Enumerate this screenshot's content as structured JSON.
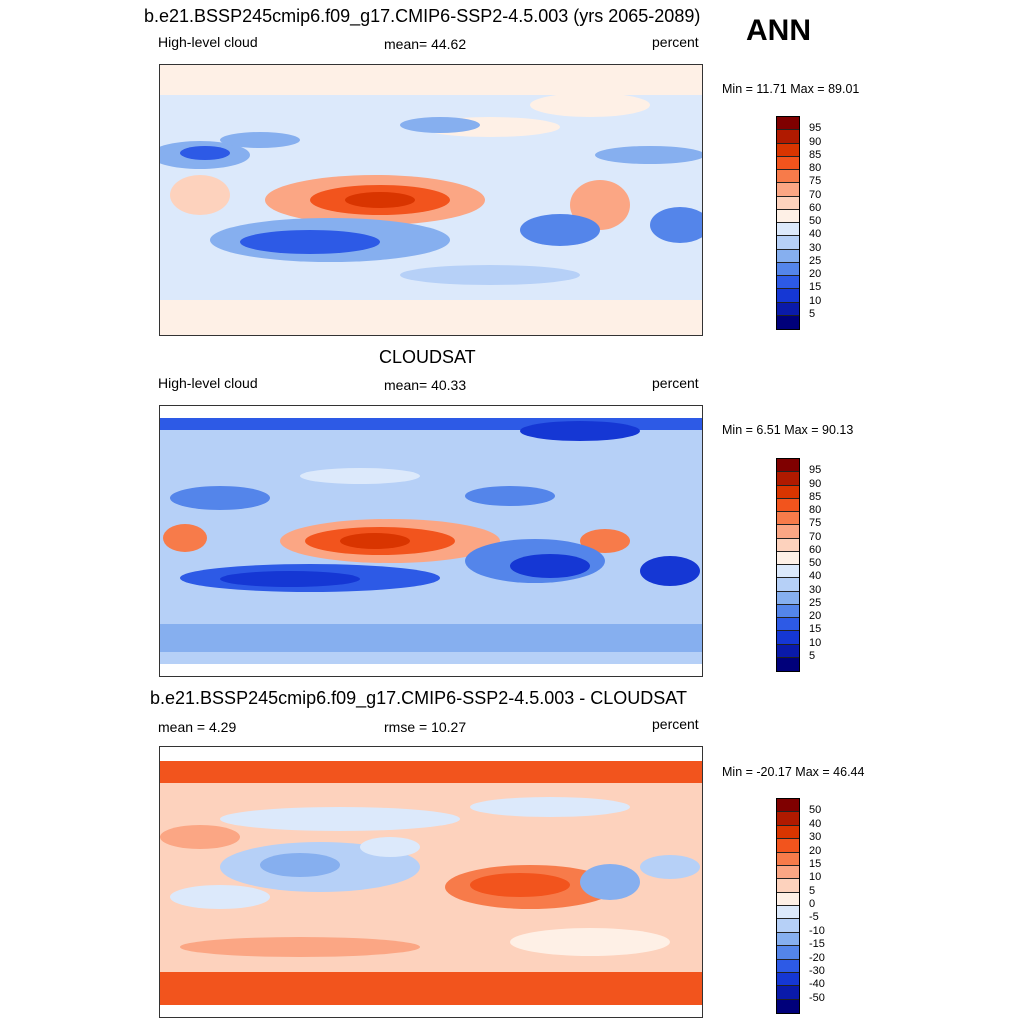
{
  "season": "ANN",
  "panels": [
    {
      "title": "b.e21.BSSP245cmip6.f09_g17.CMIP6-SSP2-4.5.003 (yrs 2065-2089)",
      "left_label": "High-level cloud",
      "center_label": "mean=  44.62",
      "right_label": "percent",
      "minmax": "Min =  11.71 Max =  89.01",
      "colorbar_levels": [
        "95",
        "90",
        "85",
        "80",
        "75",
        "70",
        "60",
        "50",
        "40",
        "30",
        "25",
        "20",
        "15",
        "10",
        "5"
      ],
      "colors": [
        "#7f0000",
        "#b01a00",
        "#d93500",
        "#f2541d",
        "#f77b4a",
        "#fba684",
        "#fdd2bd",
        "#fef0e6",
        "#dce9fb",
        "#b6d0f7",
        "#86afef",
        "#5485ea",
        "#2d5ae6",
        "#1537d4",
        "#0a1aaa",
        "#00007a"
      ]
    },
    {
      "title": "CLOUDSAT",
      "left_label": "High-level cloud",
      "center_label": "mean=  40.33",
      "right_label": "percent",
      "minmax": "Min =   6.51 Max =  90.13",
      "colorbar_levels": [
        "95",
        "90",
        "85",
        "80",
        "75",
        "70",
        "60",
        "50",
        "40",
        "30",
        "25",
        "20",
        "15",
        "10",
        "5"
      ],
      "colors": [
        "#7f0000",
        "#b01a00",
        "#d93500",
        "#f2541d",
        "#f77b4a",
        "#fba684",
        "#fdd2bd",
        "#fef0e6",
        "#dce9fb",
        "#b6d0f7",
        "#86afef",
        "#5485ea",
        "#2d5ae6",
        "#1537d4",
        "#0a1aaa",
        "#00007a"
      ]
    },
    {
      "title": "b.e21.BSSP245cmip6.f09_g17.CMIP6-SSP2-4.5.003 - CLOUDSAT",
      "left_label": "mean =   4.29",
      "center_label": "rmse =  10.27",
      "right_label": "percent",
      "minmax": "Min = -20.17 Max =  46.44",
      "colorbar_levels": [
        "50",
        "40",
        "30",
        "20",
        "15",
        "10",
        "5",
        "0",
        "-5",
        "-10",
        "-15",
        "-20",
        "-30",
        "-40",
        "-50"
      ],
      "colors": [
        "#7f0000",
        "#b01a00",
        "#d93500",
        "#f2541d",
        "#f77b4a",
        "#fba684",
        "#fdd2bd",
        "#fef0e6",
        "#dce9fb",
        "#b6d0f7",
        "#86afef",
        "#5485ea",
        "#2d5ae6",
        "#1537d4",
        "#0a1aaa",
        "#00007a"
      ]
    }
  ]
}
